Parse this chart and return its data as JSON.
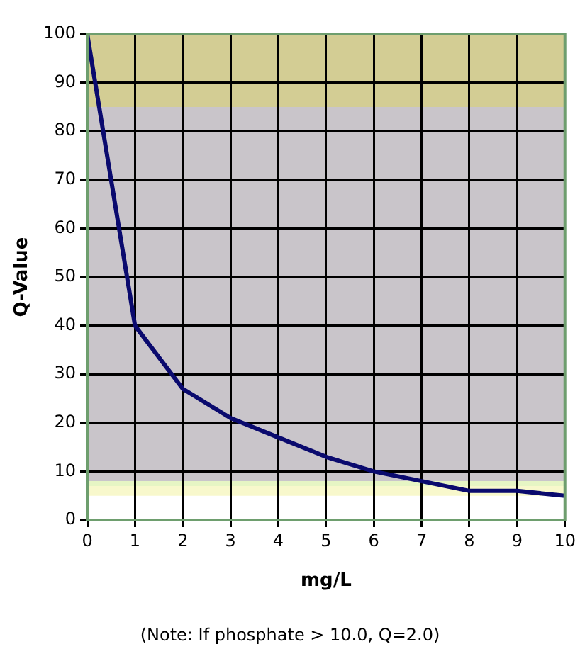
{
  "chart_data": {
    "type": "line",
    "xlabel": "mg/L",
    "ylabel": "Q-Value",
    "x": [
      0,
      1,
      2,
      3,
      4,
      5,
      6,
      7,
      8,
      9,
      10
    ],
    "series": [
      {
        "color": "#0a0a6e",
        "values": [
          100,
          40,
          27,
          21,
          17,
          13,
          10,
          8,
          6,
          6,
          5
        ]
      }
    ],
    "xlim": [
      0,
      10
    ],
    "xticks": [
      0,
      1,
      2,
      3,
      4,
      5,
      6,
      7,
      8,
      9,
      10
    ],
    "ylim": [
      0,
      100
    ],
    "yticks": [
      0,
      10,
      20,
      30,
      40,
      50,
      60,
      70,
      80,
      90,
      100
    ],
    "grid": true,
    "legend": false,
    "marker": "none",
    "line_style": "solid",
    "bands": [
      {
        "axis": "y",
        "from": 85,
        "to": 100,
        "color": "#d3cd94"
      },
      {
        "axis": "y",
        "from": 8,
        "to": 85,
        "color": "#c9c5ca"
      },
      {
        "axis": "y",
        "from": 7,
        "to": 8,
        "color": "#e6f5c4"
      },
      {
        "axis": "y",
        "from": 5,
        "to": 7,
        "color": "#f8f8cc"
      }
    ],
    "annotations": [
      "(Note: If phosphate > 10.0, Q=2.0)"
    ]
  }
}
